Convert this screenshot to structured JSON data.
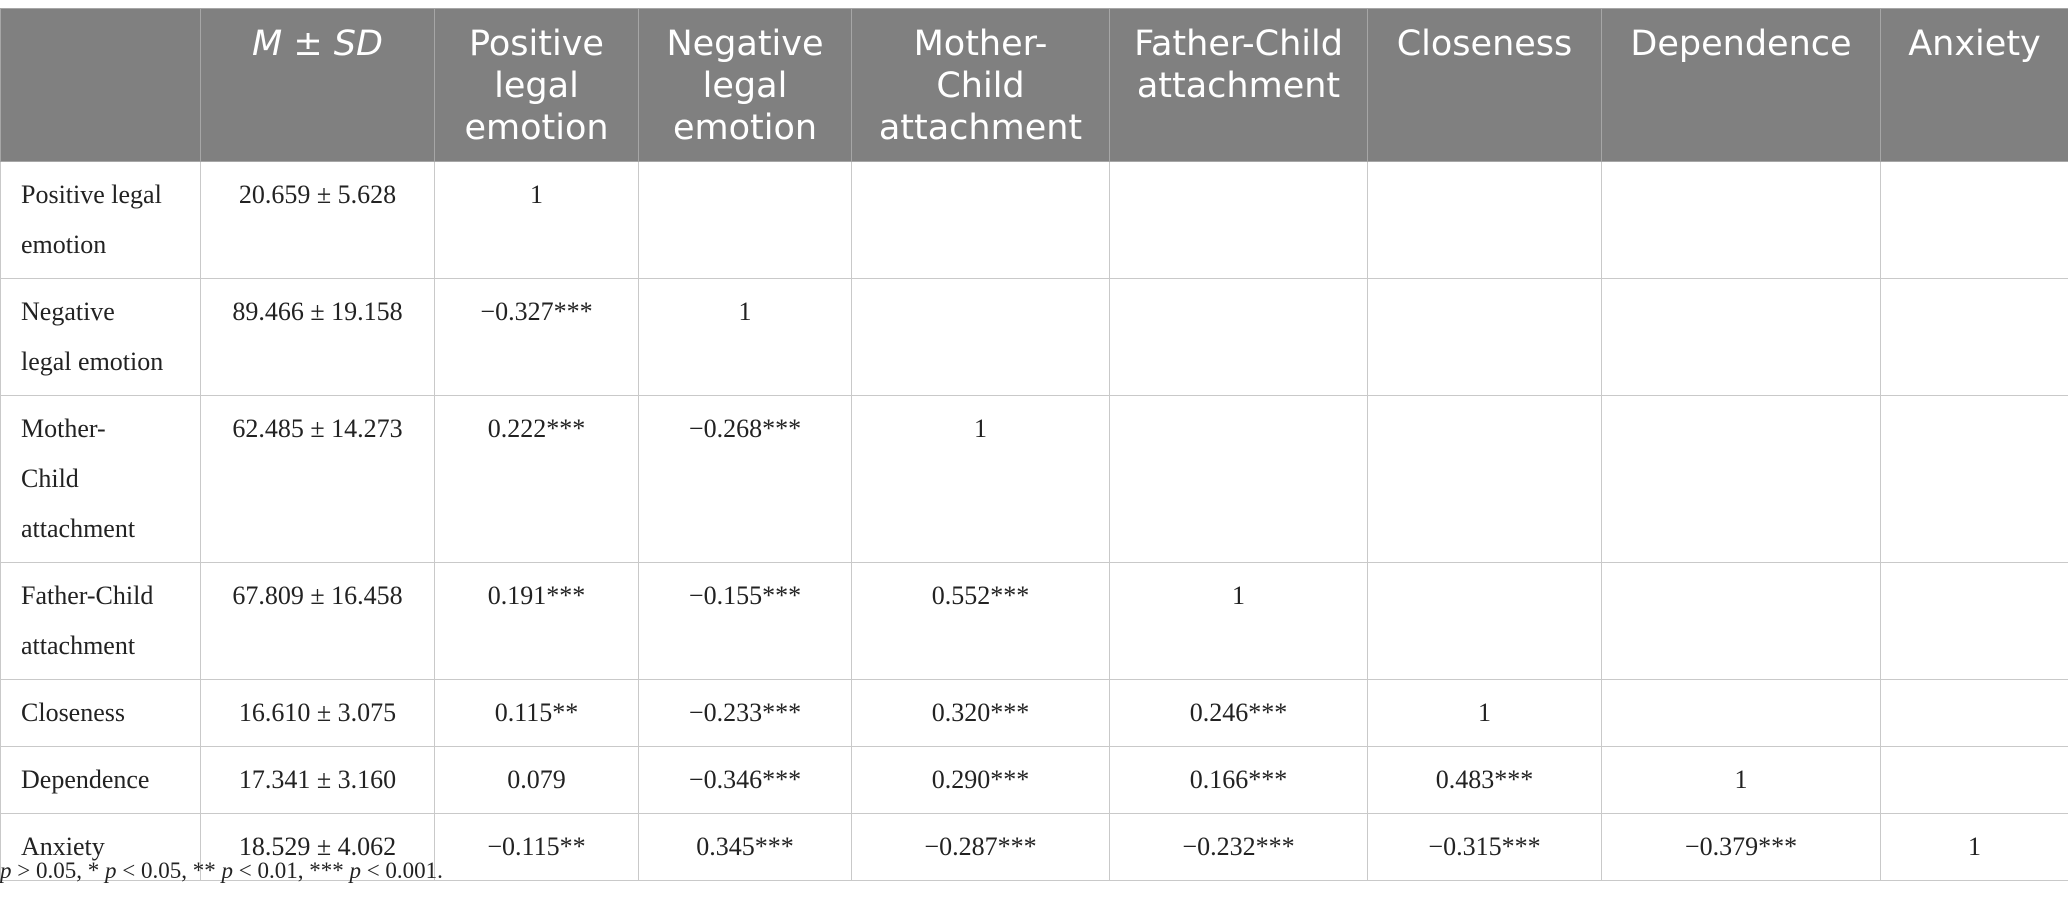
{
  "table": {
    "columns": [
      "",
      "M ± SD",
      "Positive legal emotion",
      "Negative legal emotion",
      "Mother-Child attachment",
      "Father-Child attachment",
      "Closeness",
      "Dependence",
      "Anxiety"
    ],
    "header_lines": [
      [
        ""
      ],
      [
        "M ± SD"
      ],
      [
        "Positive",
        "legal",
        "emotion"
      ],
      [
        "Negative",
        "legal",
        "emotion"
      ],
      [
        "Mother-",
        "Child",
        "attachment"
      ],
      [
        "Father-Child",
        "attachment"
      ],
      [
        "Closeness"
      ],
      [
        "Dependence"
      ],
      [
        "Anxiety"
      ]
    ],
    "rows": [
      {
        "label_lines": [
          "Positive legal",
          "emotion"
        ],
        "msd": "20.659 ± 5.628",
        "cells": [
          "1",
          "",
          "",
          "",
          "",
          "",
          ""
        ]
      },
      {
        "label_lines": [
          "Negative",
          "legal emotion"
        ],
        "msd": "89.466 ± 19.158",
        "cells": [
          "−0.327***",
          "1",
          "",
          "",
          "",
          "",
          ""
        ]
      },
      {
        "label_lines": [
          "Mother-",
          "Child",
          "attachment"
        ],
        "msd": "62.485 ± 14.273",
        "cells": [
          "0.222***",
          "−0.268***",
          "1",
          "",
          "",
          "",
          ""
        ]
      },
      {
        "label_lines": [
          "Father-Child",
          "attachment"
        ],
        "msd": "67.809 ± 16.458",
        "cells": [
          "0.191***",
          "−0.155***",
          "0.552***",
          "1",
          "",
          "",
          ""
        ]
      },
      {
        "label_lines": [
          "Closeness"
        ],
        "msd": "16.610 ± 3.075",
        "cells": [
          "0.115**",
          "−0.233***",
          "0.320***",
          "0.246***",
          "1",
          "",
          ""
        ]
      },
      {
        "label_lines": [
          "Dependence"
        ],
        "msd": "17.341 ± 3.160",
        "cells": [
          "0.079",
          "−0.346***",
          "0.290***",
          "0.166***",
          "0.483***",
          "1",
          ""
        ]
      },
      {
        "label_lines": [
          "Anxiety"
        ],
        "msd": "18.529 ± 4.062",
        "cells": [
          "−0.115**",
          "0.345***",
          "−0.287***",
          "−0.232***",
          "−0.315***",
          "−0.379***",
          "1"
        ]
      }
    ]
  },
  "footnote": {
    "p1": "p",
    "t1": " > 0.05, * ",
    "p2": "p",
    "t2": " < 0.05, ** ",
    "p3": "p",
    "t3": " < 0.01, *** ",
    "p4": "p",
    "t4": " < 0.001."
  },
  "colors": {
    "header_bg": "#808080",
    "header_text": "#ffffff",
    "grid": "#c9c9c9",
    "body_text": "#222222"
  }
}
